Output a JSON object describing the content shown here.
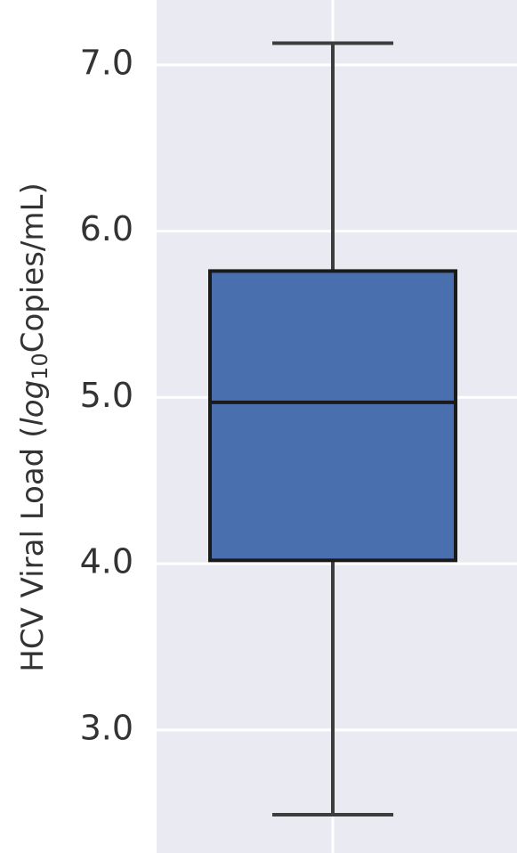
{
  "chart_data": {
    "type": "box",
    "ylabel_parts": [
      "HCV Viral Load (",
      "log",
      "10",
      "Copies/mL)"
    ],
    "categories": [
      null
    ],
    "boxes": [
      {
        "whislo": 2.49,
        "q1": 4.02,
        "med": 4.97,
        "q3": 5.76,
        "whishi": 7.13
      }
    ],
    "color": "#4a6fae",
    "ylim": [
      2.26,
      7.39
    ],
    "yticks": [
      {
        "value": 3,
        "label": "3.0"
      },
      {
        "value": 4,
        "label": "4.0"
      },
      {
        "value": 5,
        "label": "5.0"
      },
      {
        "value": 6,
        "label": "6.0"
      },
      {
        "value": 7,
        "label": "7.0"
      }
    ],
    "grid": true
  }
}
